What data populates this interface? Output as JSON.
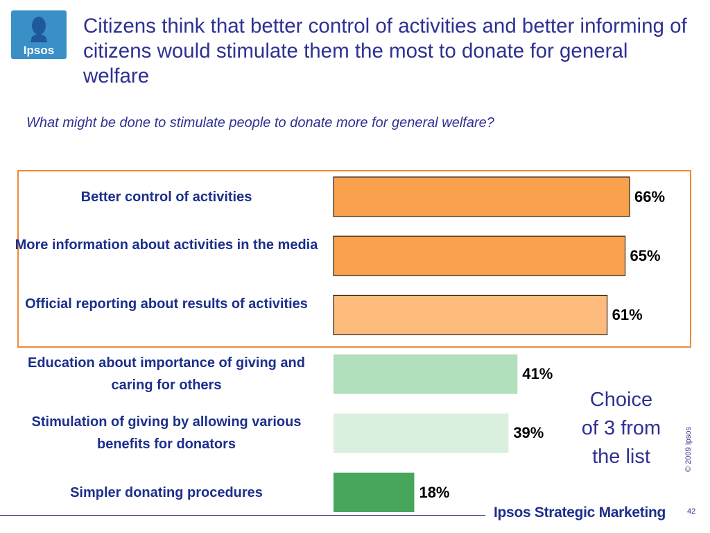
{
  "brand": {
    "logo_text": "Ipsos",
    "footer": "Ipsos Strategic Marketing"
  },
  "title": "Citizens think that better control of activities and better informing of citizens would stimulate them the most to donate for general welfare",
  "question": "What might be done to stimulate people to donate more for general welfare?",
  "side_note": "Choice of 3 from the list",
  "copyright": "© 2009 Ipsos",
  "page_number": "42",
  "chart_data": {
    "type": "bar",
    "orientation": "horizontal",
    "categories": [
      "Better control of activities",
      "More information about activities in the media",
      "Official reporting about results of activities",
      "Education about importance of giving and caring for others",
      "Stimulation of giving by allowing various benefits for donators",
      "Simpler donating procedures"
    ],
    "values": [
      66,
      65,
      61,
      41,
      39,
      18
    ],
    "value_labels": [
      "66%",
      "65%",
      "61%",
      "41%",
      "39%",
      "18%"
    ],
    "bar_colors": [
      "#f9a14d",
      "#f9a14d",
      "#fdbb7d",
      "#b2dfbc",
      "#dbefde",
      "#48a55c"
    ],
    "xlim": [
      0,
      100
    ],
    "grid": false,
    "highlighted_categories": [
      0,
      1,
      2
    ],
    "highlight_color": "#ee8a36"
  }
}
